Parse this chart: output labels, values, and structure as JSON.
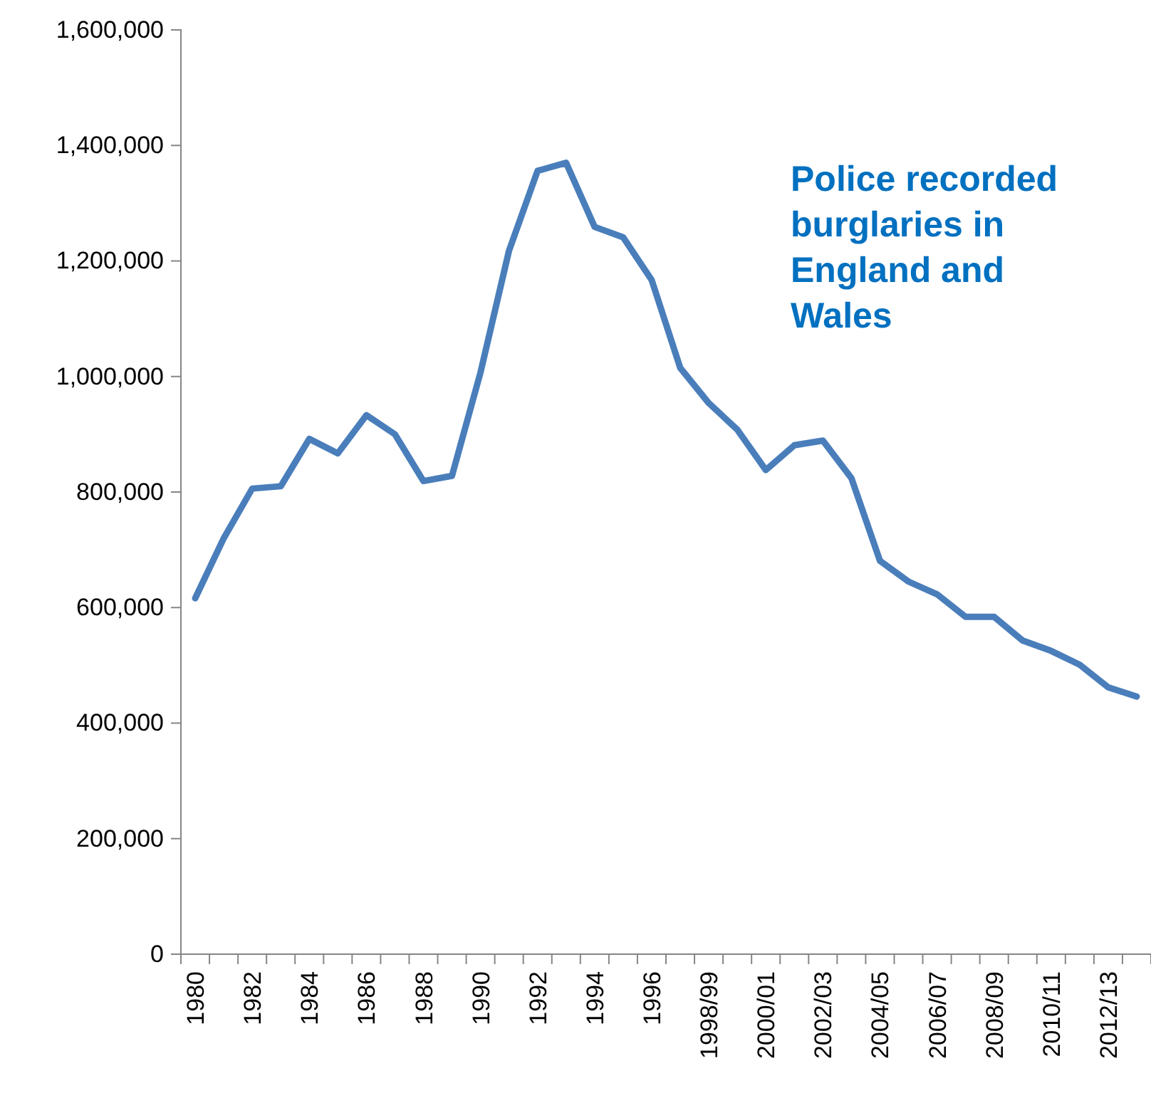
{
  "chart_data": {
    "type": "line",
    "title": "Police recorded burglaries in England and Wales",
    "categories": [
      "1980",
      null,
      "1982",
      null,
      "1984",
      null,
      "1986",
      null,
      "1988",
      null,
      "1990",
      null,
      "1992",
      null,
      "1994",
      null,
      "1996",
      null,
      "1998/99",
      null,
      "2000/01",
      null,
      "2002/03",
      null,
      "2004/05",
      null,
      "2006/07",
      null,
      "2008/09",
      null,
      "2010/11",
      null,
      "2012/13",
      null
    ],
    "series": [
      {
        "color": "#4a7ebb",
        "values": [
          616000,
          720000,
          806000,
          810000,
          892000,
          867000,
          933000,
          900000,
          819000,
          828000,
          1007000,
          1218000,
          1356000,
          1370000,
          1259000,
          1241000,
          1167000,
          1015000,
          954000,
          908000,
          838000,
          881000,
          889000,
          824000,
          681000,
          645000,
          623000,
          584000,
          584000,
          543000,
          525000,
          501000,
          462000,
          446000
        ]
      }
    ],
    "ylim": [
      0,
      1600000
    ],
    "yticks": [
      {
        "value": 0,
        "label": "0"
      },
      {
        "value": 200000,
        "label": "200,000"
      },
      {
        "value": 400000,
        "label": "400,000"
      },
      {
        "value": 600000,
        "label": "600,000"
      },
      {
        "value": 800000,
        "label": "800,000"
      },
      {
        "value": 1000000,
        "label": "1,000,000"
      },
      {
        "value": 1200000,
        "label": "1,200,000"
      },
      {
        "value": 1400000,
        "label": "1,400,000"
      },
      {
        "value": 1600000,
        "label": "1,600,000"
      }
    ],
    "grid": false,
    "marker": "none",
    "line_style": "solid"
  }
}
